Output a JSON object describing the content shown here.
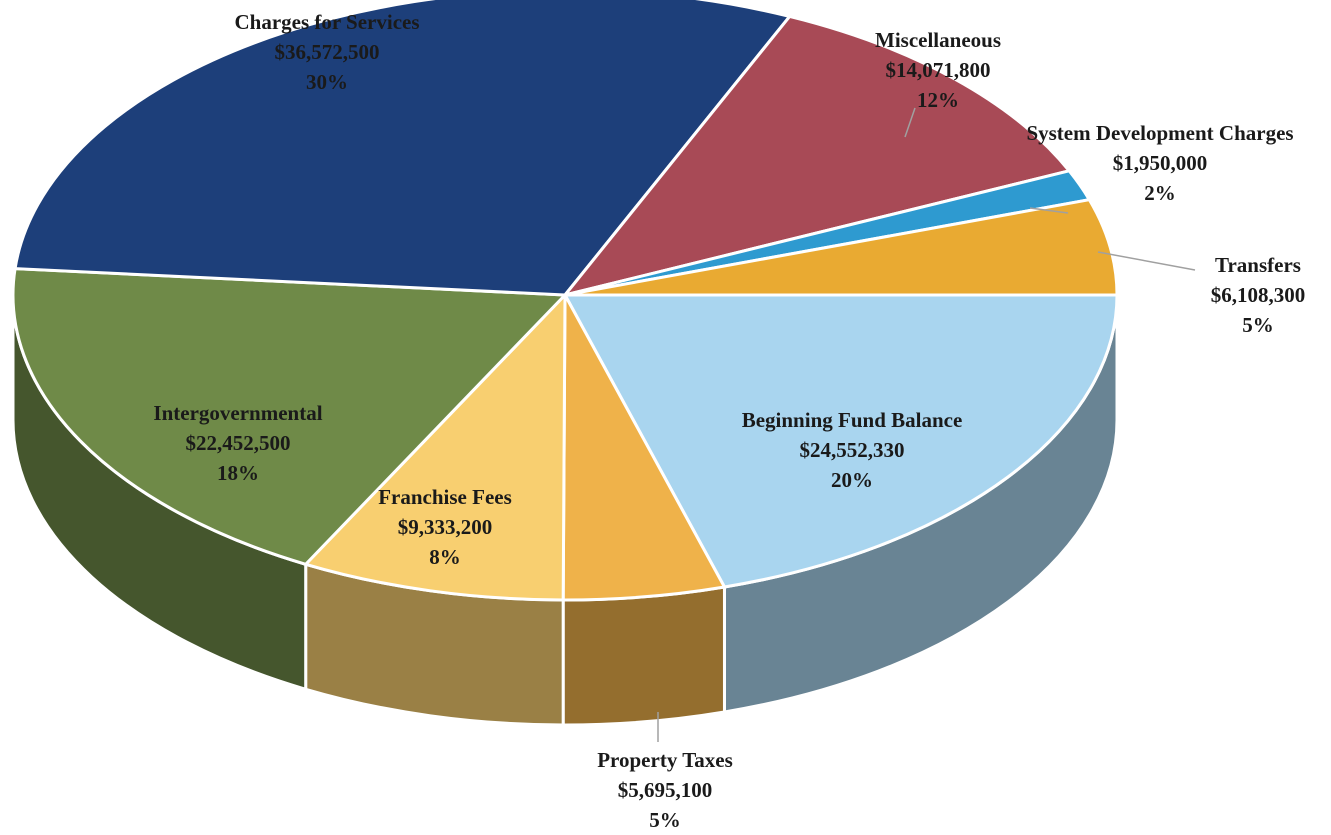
{
  "chart_data": {
    "type": "pie",
    "categories": [
      "Beginning Fund Balance",
      "Property Taxes",
      "Franchise Fees",
      "Intergovernmental",
      "Charges for Services",
      "Miscellaneous",
      "System Development Charges",
      "Transfers"
    ],
    "series": [
      {
        "values": [
          24552330,
          5695100,
          9333200,
          22452500,
          36572500,
          14071800,
          1950000,
          6108300
        ],
        "value_labels": [
          "$24,552,330",
          "$5,695,100",
          "$9,333,200",
          "$22,452,500",
          "$36,572,500",
          "$14,071,800",
          "$1,950,000",
          "$6,108,300"
        ],
        "percents": [
          20,
          5,
          8,
          18,
          30,
          12,
          2,
          5
        ],
        "percent_labels": [
          "20%",
          "5%",
          "8%",
          "18%",
          "30%",
          "12%",
          "2%",
          "5%"
        ],
        "colors": [
          "#a9d5ef",
          "#efb24a",
          "#f8cf70",
          "#6f8a48",
          "#1d3f7a",
          "#a84a56",
          "#2e9ad0",
          "#e9aa32"
        ]
      }
    ]
  }
}
